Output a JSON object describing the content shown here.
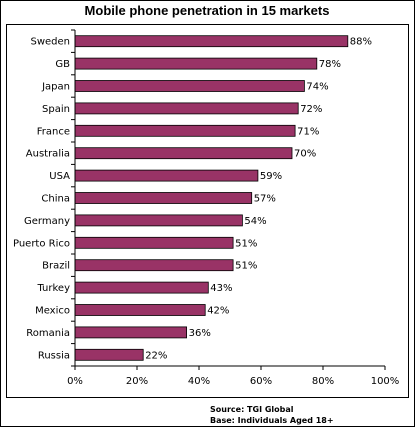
{
  "chart_data": {
    "type": "bar",
    "orientation": "horizontal",
    "title": "Mobile phone penetration in 15 markets",
    "categories": [
      "Sweden",
      "GB",
      "Japan",
      "Spain",
      "France",
      "Australia",
      "USA",
      "China",
      "Germany",
      "Puerto Rico",
      "Brazil",
      "Turkey",
      "Mexico",
      "Romania",
      "Russia"
    ],
    "values": [
      88,
      78,
      74,
      72,
      71,
      70,
      59,
      57,
      54,
      51,
      51,
      43,
      42,
      36,
      22
    ],
    "value_labels": [
      "88%",
      "78%",
      "74%",
      "72%",
      "71%",
      "70%",
      "59%",
      "57%",
      "54%",
      "51%",
      "51%",
      "43%",
      "42%",
      "36%",
      "22%"
    ],
    "xlim": [
      0,
      100
    ],
    "xticks": [
      0,
      20,
      40,
      60,
      80,
      100
    ],
    "xtick_labels": [
      "0%",
      "20%",
      "40%",
      "60%",
      "80%",
      "100%"
    ],
    "xlabel": "",
    "ylabel": "",
    "grid": false,
    "bar_color": "#993366",
    "bar_edge_color": "#000000"
  },
  "source": {
    "line1": "Source: TGI Global",
    "line2": "Base: Individuals Aged 18+"
  }
}
